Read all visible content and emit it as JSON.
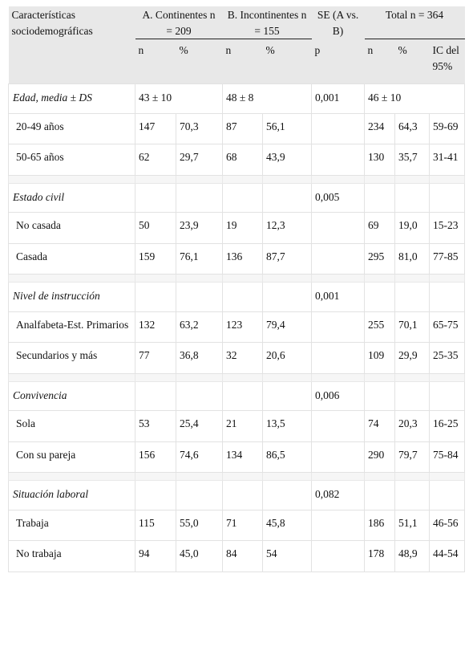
{
  "header": {
    "characteristics_label": "Características sociodemográficas",
    "group_a": "A. Continentes n = 209",
    "group_b": "B. Incontinentes n = 155",
    "se_label": "SE (A vs. B)",
    "total_label": "Total n = 364",
    "sub": {
      "a_n": "n",
      "a_pct": "%",
      "b_n": "n",
      "b_pct": "%",
      "p": "p",
      "t_n": "n",
      "t_pct": "%",
      "ci": "IC del 95%"
    }
  },
  "groups": [
    {
      "label": "Edad, media ± DS",
      "a": "43 ± 10",
      "b": "48 ± 8",
      "p": "0,001",
      "total": "46 ± 10",
      "rows": [
        {
          "label": "20-49 años",
          "a_n": "147",
          "a_pct": "70,3",
          "b_n": "87",
          "b_pct": "56,1",
          "t_n": "234",
          "t_pct": "64,3",
          "ci": "59-69"
        },
        {
          "label": "50-65 años",
          "a_n": "62",
          "a_pct": "29,7",
          "b_n": "68",
          "b_pct": "43,9",
          "t_n": "130",
          "t_pct": "35,7",
          "ci": "31-41"
        }
      ]
    },
    {
      "label": "Estado civil",
      "p": "0,005",
      "rows": [
        {
          "label": "No casada",
          "a_n": "50",
          "a_pct": "23,9",
          "b_n": "19",
          "b_pct": "12,3",
          "t_n": "69",
          "t_pct": "19,0",
          "ci": "15-23"
        },
        {
          "label": "Casada",
          "a_n": "159",
          "a_pct": "76,1",
          "b_n": "136",
          "b_pct": "87,7",
          "t_n": "295",
          "t_pct": "81,0",
          "ci": "77-85"
        }
      ]
    },
    {
      "label": "Nivel de instrucción",
      "p": "0,001",
      "rows": [
        {
          "label": "Analfabeta-Est. Primarios",
          "a_n": "132",
          "a_pct": "63,2",
          "b_n": "123",
          "b_pct": "79,4",
          "t_n": "255",
          "t_pct": "70,1",
          "ci": "65-75"
        },
        {
          "label": "Secundarios y más",
          "a_n": "77",
          "a_pct": "36,8",
          "b_n": "32",
          "b_pct": "20,6",
          "t_n": "109",
          "t_pct": "29,9",
          "ci": "25-35"
        }
      ]
    },
    {
      "label": "Convivencia",
      "p": "0,006",
      "rows": [
        {
          "label": "Sola",
          "a_n": "53",
          "a_pct": "25,4",
          "b_n": "21",
          "b_pct": "13,5",
          "t_n": "74",
          "t_pct": "20,3",
          "ci": "16-25"
        },
        {
          "label": "Con su pareja",
          "a_n": "156",
          "a_pct": "74,6",
          "b_n": "134",
          "b_pct": "86,5",
          "t_n": "290",
          "t_pct": "79,7",
          "ci": "75-84"
        }
      ]
    },
    {
      "label": "Situación laboral",
      "p": "0,082",
      "rows": [
        {
          "label": "Trabaja",
          "a_n": "115",
          "a_pct": "55,0",
          "b_n": "71",
          "b_pct": "45,8",
          "t_n": "186",
          "t_pct": "51,1",
          "ci": "46-56"
        },
        {
          "label": "No trabaja",
          "a_n": "94",
          "a_pct": "45,0",
          "b_n": "84",
          "b_pct": "54",
          "t_n": "178",
          "t_pct": "48,9",
          "ci": "44-54"
        }
      ]
    }
  ]
}
